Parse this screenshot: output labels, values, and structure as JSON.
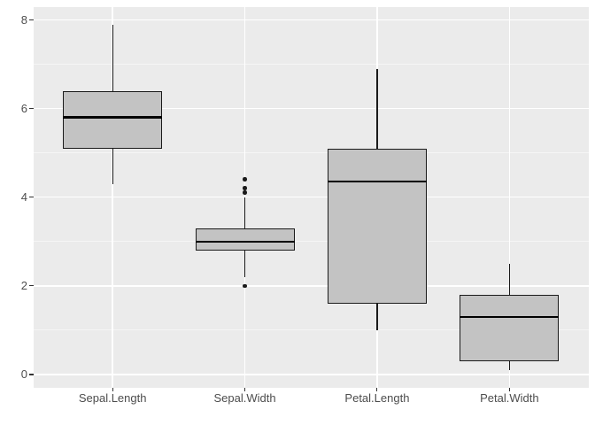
{
  "chart_data": {
    "type": "boxplot",
    "title": "",
    "xlabel": "",
    "ylabel": "",
    "categories": [
      "Sepal.Length",
      "Sepal.Width",
      "Petal.Length",
      "Petal.Width"
    ],
    "series": [
      {
        "name": "Sepal.Length",
        "whisker_low": 4.3,
        "q1": 5.1,
        "median": 5.8,
        "q3": 6.4,
        "whisker_high": 7.9,
        "outliers": []
      },
      {
        "name": "Sepal.Width",
        "whisker_low": 2.2,
        "q1": 2.8,
        "median": 3.0,
        "q3": 3.3,
        "whisker_high": 4.0,
        "outliers": [
          2.0,
          4.1,
          4.2,
          4.4
        ]
      },
      {
        "name": "Petal.Length",
        "whisker_low": 1.0,
        "q1": 1.6,
        "median": 4.35,
        "q3": 5.1,
        "whisker_high": 6.9,
        "outliers": []
      },
      {
        "name": "Petal.Width",
        "whisker_low": 0.1,
        "q1": 0.3,
        "median": 1.3,
        "q3": 1.8,
        "whisker_high": 2.5,
        "outliers": []
      }
    ],
    "y_ticks": [
      0,
      2,
      4,
      6,
      8
    ],
    "y_minor_ticks": [
      1,
      3,
      5,
      7
    ],
    "ylim": [
      -0.29,
      8.29
    ],
    "grid": true,
    "legend": false
  },
  "style": {
    "panel_bg": "#EBEBEB",
    "grid_major": "#FFFFFF",
    "grid_minor": "rgba(255,255,255,0.5)",
    "box_fill": "#C3C3C3",
    "box_border": "#1A1A1A",
    "median_color": "#000000",
    "whisker_color": "#1A1A1A",
    "outlier_color": "#1A1A1A",
    "axis_text_color": "#4D4D4D",
    "tick_color": "#333333"
  }
}
